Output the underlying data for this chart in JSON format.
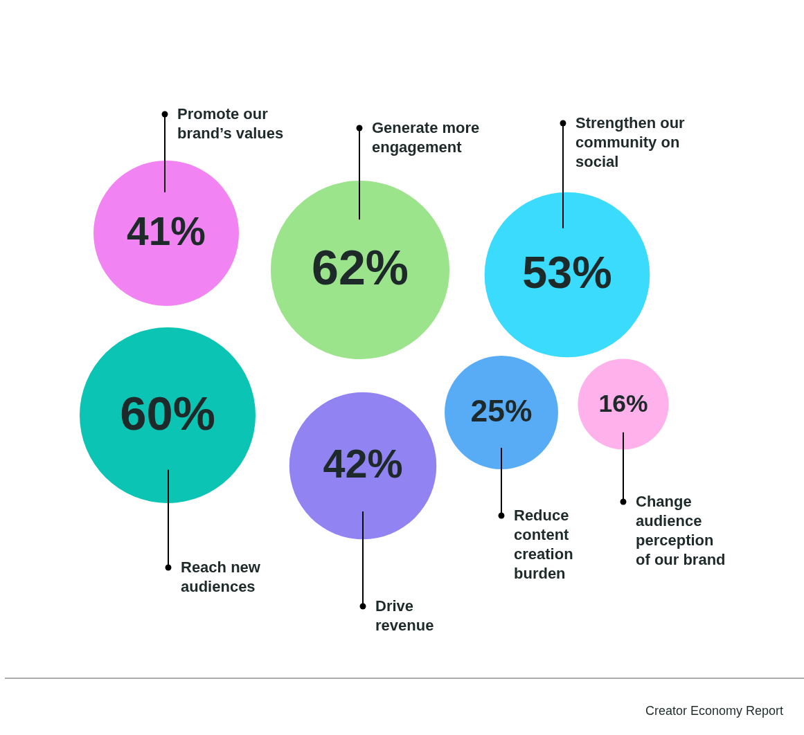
{
  "chart_data": {
    "type": "other",
    "categories": [
      "Promote our brand’s values",
      "Generate more engagement",
      "Strengthen our community on social",
      "Reach new audiences",
      "Drive revenue",
      "Reduce content creation burden",
      "Change audience perception of our brand"
    ],
    "values": [
      41,
      62,
      53,
      60,
      42,
      25,
      16
    ],
    "value_labels": [
      "41%",
      "62%",
      "53%",
      "60%",
      "42%",
      "25%",
      "16%"
    ],
    "colors": [
      "#f283f2",
      "#9be48c",
      "#3adbfd",
      "#0bc4b3",
      "#9283f2",
      "#58abf5",
      "#feb1ea"
    ],
    "annotations": [
      "Creator Economy Report"
    ]
  }
}
